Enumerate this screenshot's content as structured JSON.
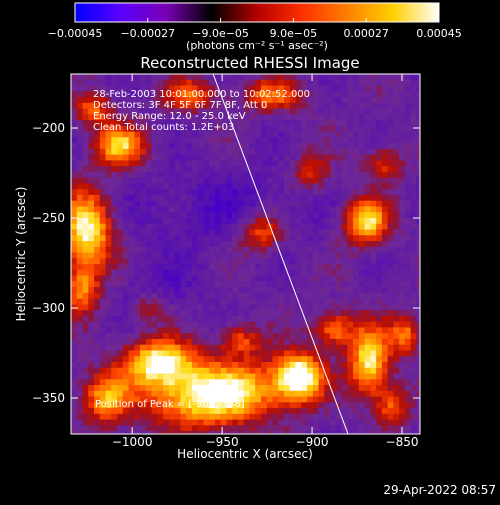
{
  "chart_data": {
    "type": "heatmap",
    "title": "Reconstructed RHESSI Image",
    "xlabel": "Heliocentric X (arcsec)",
    "ylabel": "Heliocentric Y (arcsec)",
    "xlim": [
      -1034,
      -840
    ],
    "ylim": [
      -370,
      -170
    ],
    "x_ticks": [
      -1000,
      -950,
      -900,
      -850
    ],
    "x_tick_labels": [
      "−1000",
      "−950",
      "−900",
      "−850"
    ],
    "y_ticks": [
      -350,
      -300,
      -250,
      -200
    ],
    "y_tick_labels": [
      "−350",
      "−300",
      "−250",
      "−200"
    ],
    "colorbar": {
      "min": -0.00045,
      "max": 0.00045,
      "tick_values": [
        -0.00045,
        -0.00027,
        -9e-05,
        9e-05,
        0.00027,
        0.00045
      ],
      "tick_labels": [
        "−0.00045",
        "−0.00027",
        "−9.0e−05",
        "9.0e−05",
        "0.00027",
        "0.00045"
      ],
      "units": "(photons cm⁻² s⁻¹ asec⁻²)",
      "colors": [
        "#0000ff",
        "#5a00ff",
        "#7a00b4",
        "#000000",
        "#b40000",
        "#ff3000",
        "#ff8000",
        "#ffd000",
        "#ffffff"
      ]
    },
    "annotations": [
      "28-Feb-2003 10:01:00.000 to 10:02:52.000",
      "Detectors: 3F 4F 5F 6F 7F 8F, Att 0",
      "Energy Range: 12.0 - 25.0 keV",
      "Clean     Total counts: 1.2E+03"
    ],
    "peak_label": "Position of Peak = [-907,-338]",
    "peak": [
      -907,
      -338
    ],
    "limb_line": [
      [
        -955,
        -170
      ],
      [
        -880,
        -370
      ]
    ],
    "grid": false,
    "blobs": [
      {
        "x": -907,
        "y": -338,
        "sx": 9,
        "sy": 9,
        "a": 1.0
      },
      {
        "x": -935,
        "y": -345,
        "sx": 20,
        "sy": 12,
        "a": 0.55
      },
      {
        "x": -985,
        "y": -330,
        "sx": 14,
        "sy": 9,
        "a": 0.9
      },
      {
        "x": -965,
        "y": -350,
        "sx": 20,
        "sy": 12,
        "a": 0.75
      },
      {
        "x": -1015,
        "y": -350,
        "sx": 10,
        "sy": 10,
        "a": 0.65
      },
      {
        "x": -1025,
        "y": -258,
        "sx": 10,
        "sy": 16,
        "a": 0.9
      },
      {
        "x": -1028,
        "y": -290,
        "sx": 7,
        "sy": 9,
        "a": 0.55
      },
      {
        "x": -1007,
        "y": -210,
        "sx": 10,
        "sy": 8,
        "a": 0.75
      },
      {
        "x": -1022,
        "y": -190,
        "sx": 7,
        "sy": 6,
        "a": 0.55
      },
      {
        "x": -968,
        "y": -182,
        "sx": 10,
        "sy": 6,
        "a": 0.55
      },
      {
        "x": -922,
        "y": -182,
        "sx": 12,
        "sy": 6,
        "a": 0.55
      },
      {
        "x": -928,
        "y": -258,
        "sx": 9,
        "sy": 8,
        "a": 0.55
      },
      {
        "x": -870,
        "y": -252,
        "sx": 9,
        "sy": 9,
        "a": 0.85
      },
      {
        "x": -900,
        "y": -225,
        "sx": 8,
        "sy": 8,
        "a": 0.4
      },
      {
        "x": -868,
        "y": -330,
        "sx": 8,
        "sy": 14,
        "a": 0.85
      },
      {
        "x": -888,
        "y": -312,
        "sx": 8,
        "sy": 7,
        "a": 0.6
      },
      {
        "x": -848,
        "y": -315,
        "sx": 6,
        "sy": 8,
        "a": 0.55
      },
      {
        "x": -855,
        "y": -355,
        "sx": 6,
        "sy": 8,
        "a": 0.5
      },
      {
        "x": -860,
        "y": -220,
        "sx": 8,
        "sy": 7,
        "a": 0.4
      },
      {
        "x": -990,
        "y": -300,
        "sx": 7,
        "sy": 6,
        "a": 0.35
      },
      {
        "x": -940,
        "y": -318,
        "sx": 8,
        "sy": 6,
        "a": 0.45
      }
    ]
  },
  "timestamp": "29-Apr-2022 08:57"
}
